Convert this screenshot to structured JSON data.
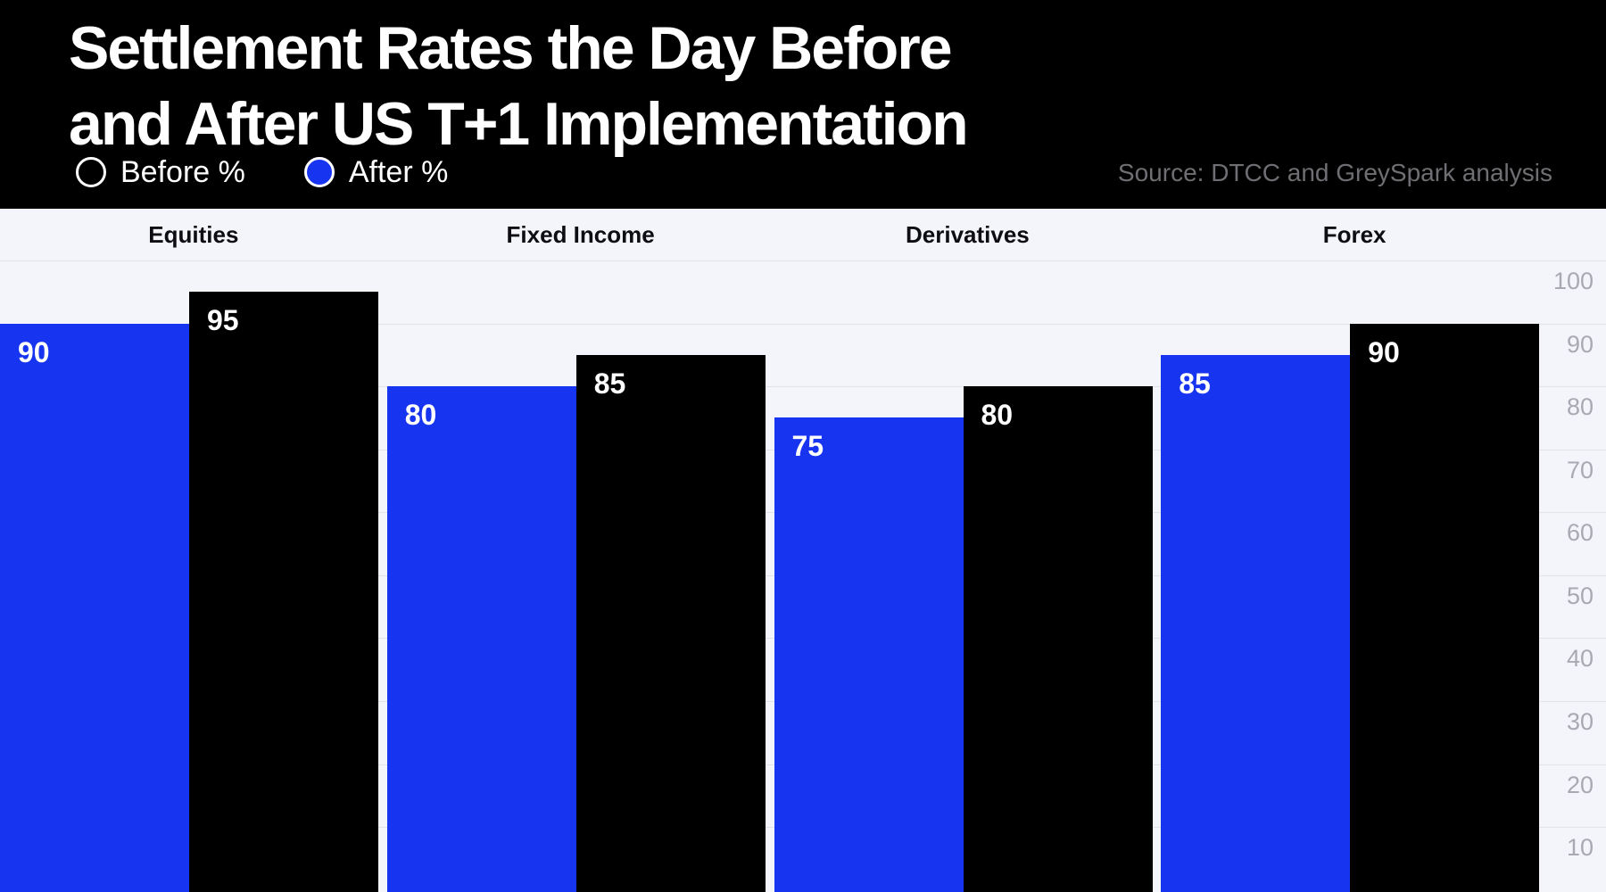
{
  "header": {
    "title_line1": "Settlement Rates the Day Before",
    "title_line2": "and After US T+1 Implementation",
    "legend": [
      {
        "label": "Before %",
        "series": "before"
      },
      {
        "label": "After %",
        "series": "after"
      }
    ],
    "source": "Source: DTCC and GreySpark analysis"
  },
  "colors": {
    "after_blue": "#1734f0",
    "before_black": "#000000",
    "header_bg": "#000000",
    "plot_bg": "#f4f5fa",
    "gridline": "#e3e3ea",
    "axis_label": "#a9a9b3",
    "source_text": "#6f6f73",
    "category_label": "#0d0d12",
    "value_label": "#ffffff"
  },
  "chart_data": {
    "type": "bar",
    "title": "Settlement Rates the Day Before and After US T+1 Implementation",
    "categories": [
      "Equities",
      "Fixed Income",
      "Derivatives",
      "Forex"
    ],
    "series": [
      {
        "name": "After %",
        "position": "left",
        "color": "#1734f0",
        "values": [
          90,
          80,
          75,
          85
        ]
      },
      {
        "name": "Before %",
        "position": "right",
        "color": "#000000",
        "values": [
          95,
          85,
          80,
          90
        ]
      }
    ],
    "ylim": [
      0,
      100
    ],
    "yticks": [
      100,
      90,
      80,
      70,
      60,
      50,
      40,
      30,
      20,
      10
    ],
    "axis_side": "right",
    "grid": true,
    "value_labels": "inside-top-left",
    "legend_position": "top-left",
    "bars_clipped_at_bottom": true
  }
}
